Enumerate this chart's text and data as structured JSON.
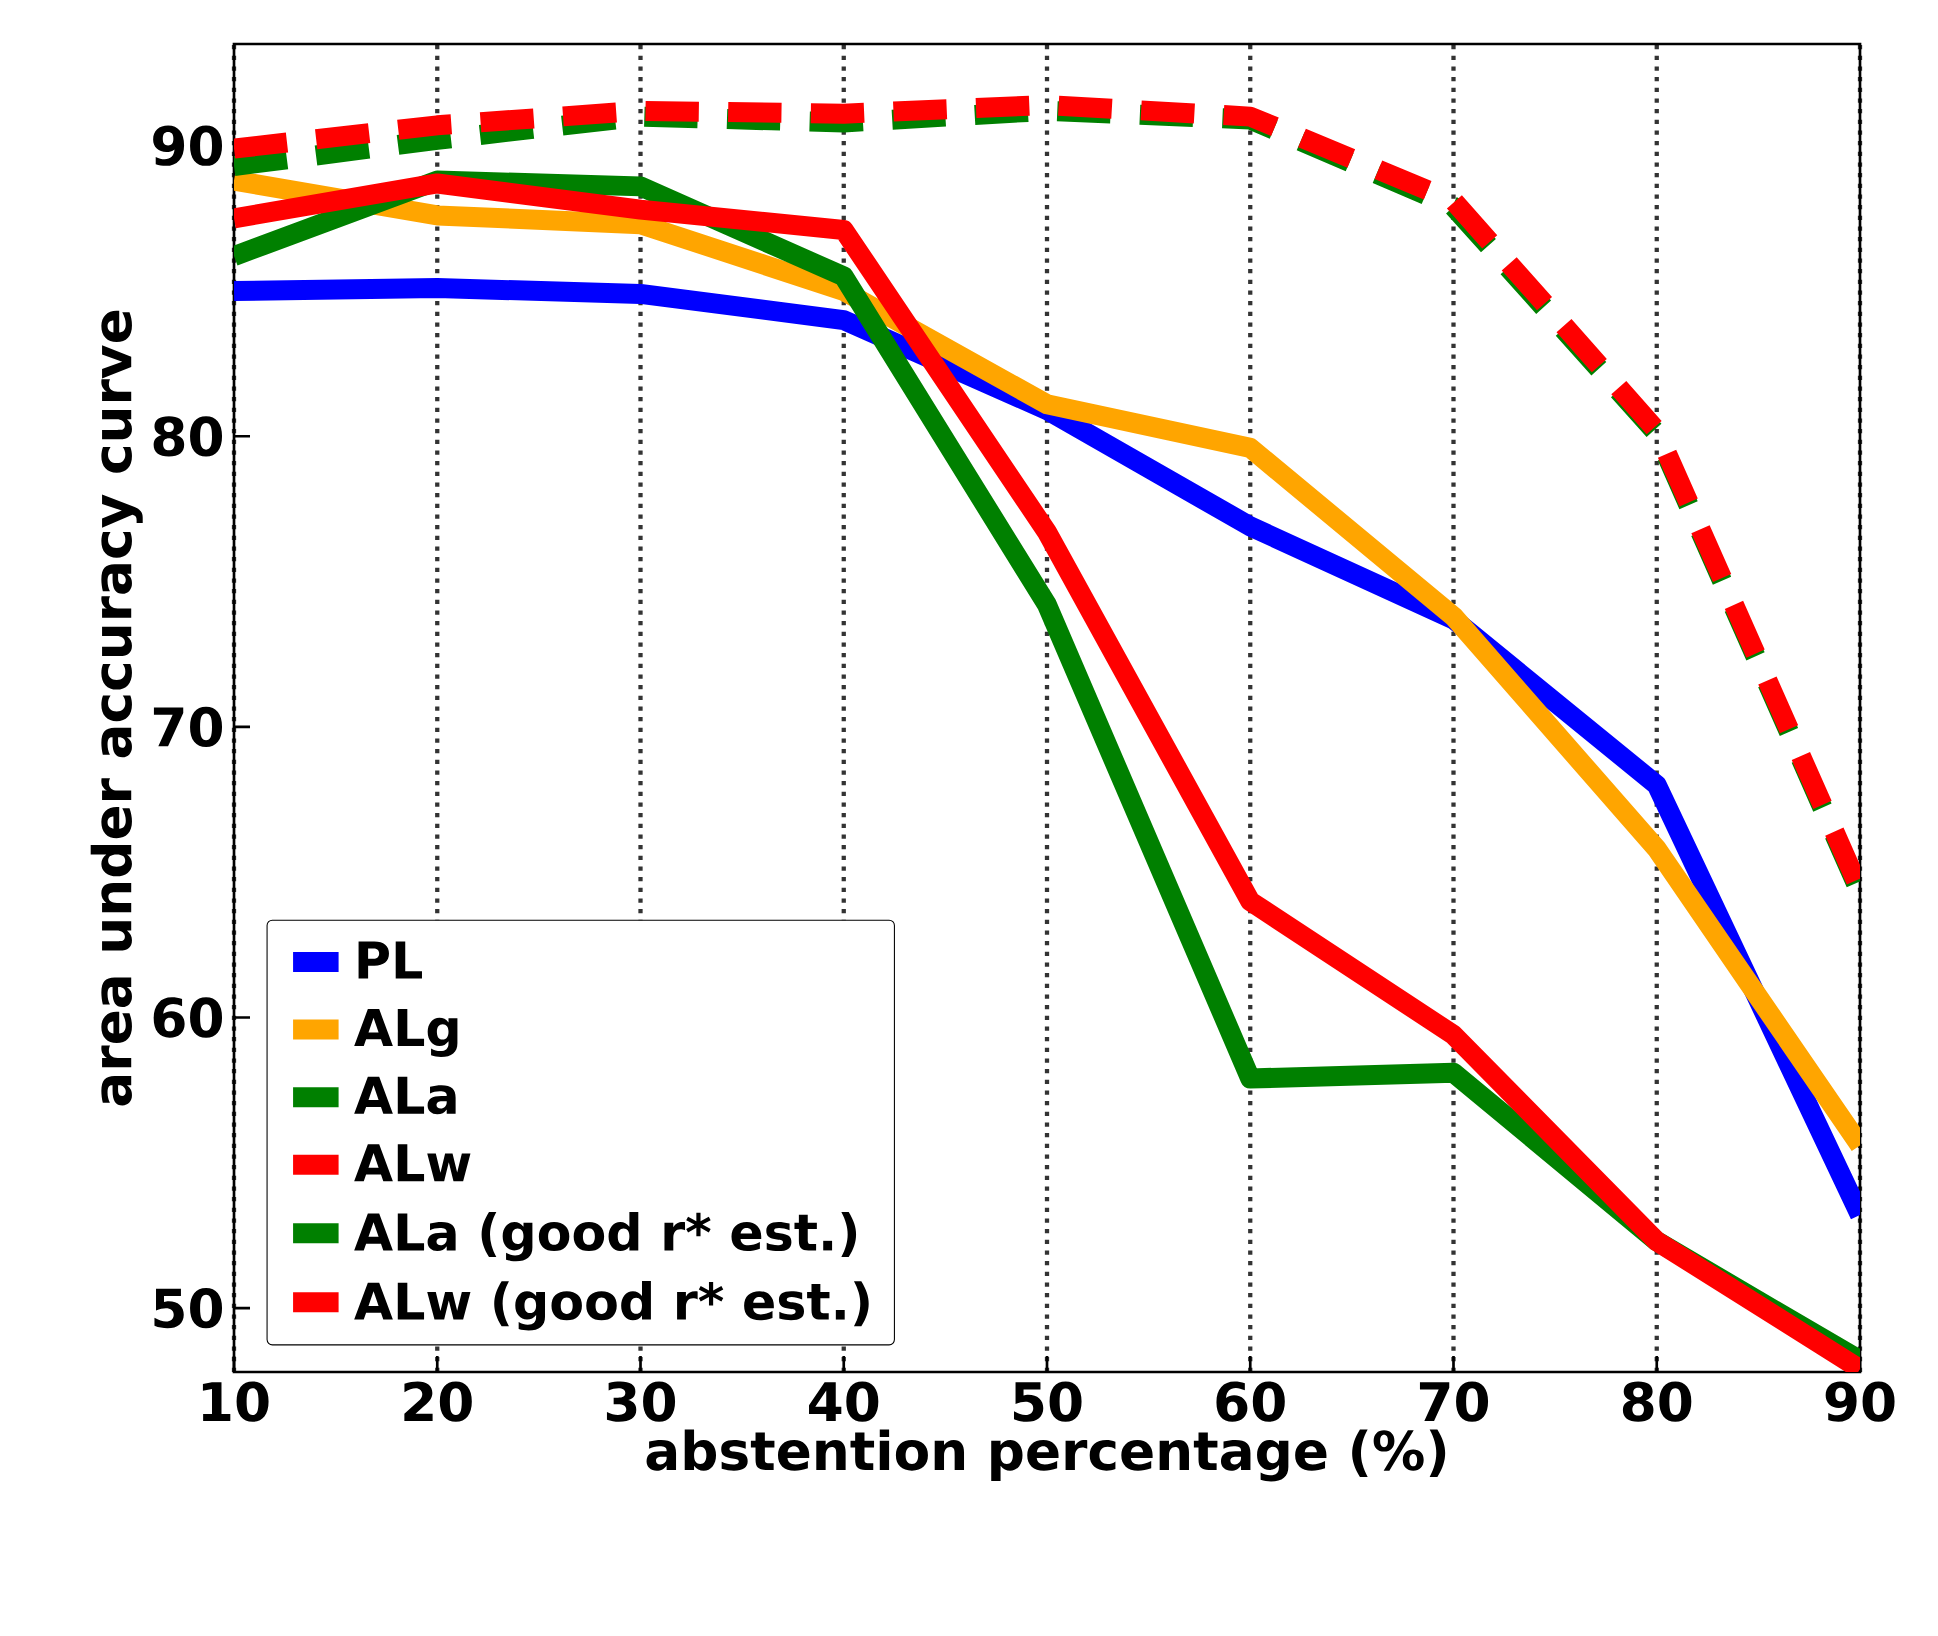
{
  "chart_data": {
    "type": "line",
    "xlabel": "abstention percentage (%)",
    "ylabel": "area under accuracy curve",
    "x": [
      10,
      20,
      30,
      40,
      50,
      60,
      70,
      80,
      90
    ],
    "xlim": [
      10,
      90
    ],
    "xticks": [
      10,
      20,
      30,
      40,
      50,
      60,
      70,
      80,
      90
    ],
    "ylim": [
      47.8,
      93.5
    ],
    "yticks": [
      50,
      60,
      70,
      80,
      90
    ],
    "grid": "x",
    "legend": "bottom left",
    "marker": "none",
    "series": [
      {
        "name": "PL",
        "color": "#0000ff",
        "line_style": "solid",
        "values": [
          85.0,
          85.1,
          84.9,
          84.0,
          80.9,
          76.9,
          73.7,
          68.0,
          53.2
        ]
      },
      {
        "name": "ALg",
        "color": "#ffa500",
        "line_style": "solid",
        "values": [
          88.8,
          87.6,
          87.3,
          85.0,
          81.1,
          79.6,
          73.8,
          65.8,
          55.6
        ]
      },
      {
        "name": "ALa",
        "color": "#008000",
        "line_style": "solid",
        "values": [
          86.2,
          88.8,
          88.6,
          85.5,
          74.2,
          57.9,
          58.1,
          52.3,
          48.2
        ]
      },
      {
        "name": "ALw",
        "color": "#ff0000",
        "line_style": "solid",
        "values": [
          87.5,
          88.7,
          87.8,
          87.1,
          76.7,
          64.0,
          59.4,
          52.3,
          47.9
        ]
      },
      {
        "name": "ALa (good r* est.)",
        "color": "#008000",
        "line_style": "dashed",
        "values": [
          89.3,
          90.2,
          91.0,
          90.8,
          91.2,
          90.9,
          87.9,
          80.1,
          64.3
        ]
      },
      {
        "name": "ALw (good r* est.)",
        "color": "#ff0000",
        "line_style": "dashed",
        "values": [
          89.9,
          90.7,
          91.2,
          91.1,
          91.4,
          91.0,
          88.1,
          80.2,
          64.4
        ]
      }
    ]
  }
}
